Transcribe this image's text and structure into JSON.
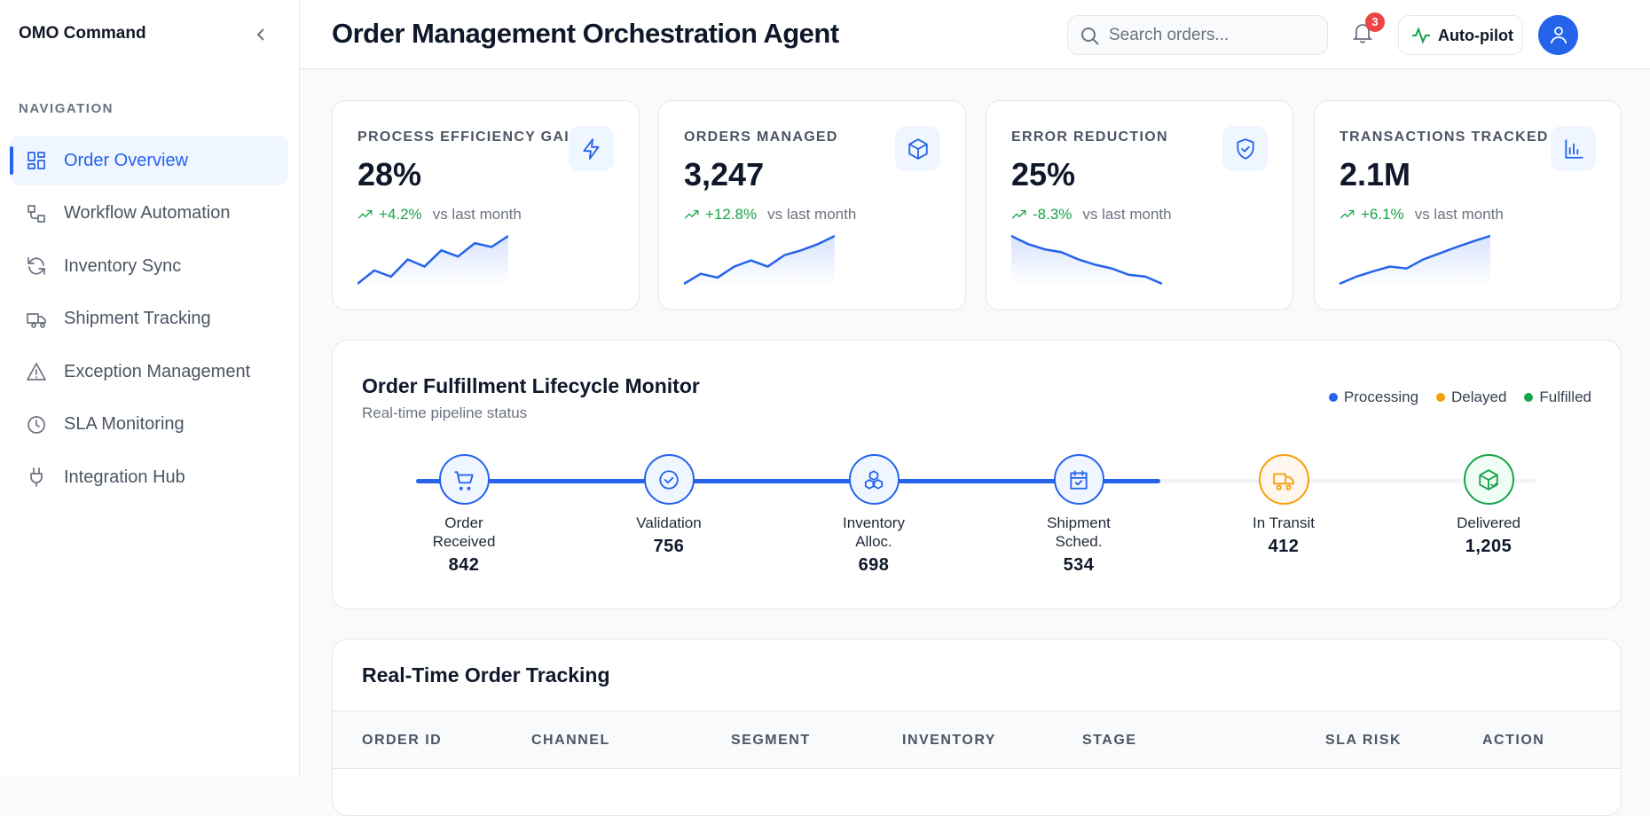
{
  "sidebar": {
    "brand": "OMO Command",
    "section": "NAVIGATION",
    "items": [
      "Order Overview",
      "Workflow Automation",
      "Inventory Sync",
      "Shipment Tracking",
      "Exception Management",
      "SLA Monitoring",
      "Integration Hub"
    ],
    "active": 0
  },
  "header": {
    "title": "Order Management Orchestration Agent",
    "search_placeholder": "Search orders...",
    "notifications": 3,
    "autopilot": "Auto-pilot"
  },
  "kpis": [
    {
      "label": "PROCESS EFFICIENCY GAIN",
      "value": "28%",
      "change": "+4.2%",
      "compare": "vs last month",
      "trend": [
        0,
        28,
        15,
        51,
        36,
        70,
        57,
        85,
        77,
        100
      ]
    },
    {
      "label": "ORDERS MANAGED",
      "value": "3,247",
      "change": "+12.8%",
      "compare": "vs last month",
      "trend": [
        0,
        21,
        13,
        36,
        49,
        36,
        60,
        70,
        83,
        100
      ]
    },
    {
      "label": "ERROR REDUCTION",
      "value": "25%",
      "change": "-8.3%",
      "compare": "vs last month",
      "trend": [
        100,
        83,
        72,
        66,
        51,
        40,
        32,
        19,
        15,
        0
      ]
    },
    {
      "label": "TRANSACTIONS TRACKED",
      "value": "2.1M",
      "change": "+6.1%",
      "compare": "vs last month",
      "trend": [
        0,
        15,
        26,
        36,
        32,
        51,
        64,
        77,
        89,
        100
      ]
    }
  ],
  "lifecycle": {
    "title": "Order Fulfillment Lifecycle Monitor",
    "subtitle": "Real-time pipeline status",
    "legend": [
      {
        "name": "Processing",
        "color": "#2563eb"
      },
      {
        "name": "Delayed",
        "color": "#f59e0b"
      },
      {
        "name": "Fulfilled",
        "color": "#16a34a"
      }
    ],
    "stages": [
      {
        "label": "Order Received",
        "count": "842",
        "color": "#2563eb"
      },
      {
        "label": "Validation",
        "count": "756",
        "color": "#2563eb"
      },
      {
        "label": "Inventory Alloc.",
        "count": "698",
        "color": "#2563eb"
      },
      {
        "label": "Shipment Sched.",
        "count": "534",
        "color": "#2563eb"
      },
      {
        "label": "In Transit",
        "count": "412",
        "color": "#f59e0b"
      },
      {
        "label": "Delivered",
        "count": "1,205",
        "color": "#16a34a"
      }
    ]
  },
  "tracking": {
    "title": "Real-Time Order Tracking",
    "columns": [
      "ORDER ID",
      "CHANNEL",
      "SEGMENT",
      "INVENTORY",
      "STAGE",
      "SLA RISK",
      "ACTION"
    ]
  }
}
